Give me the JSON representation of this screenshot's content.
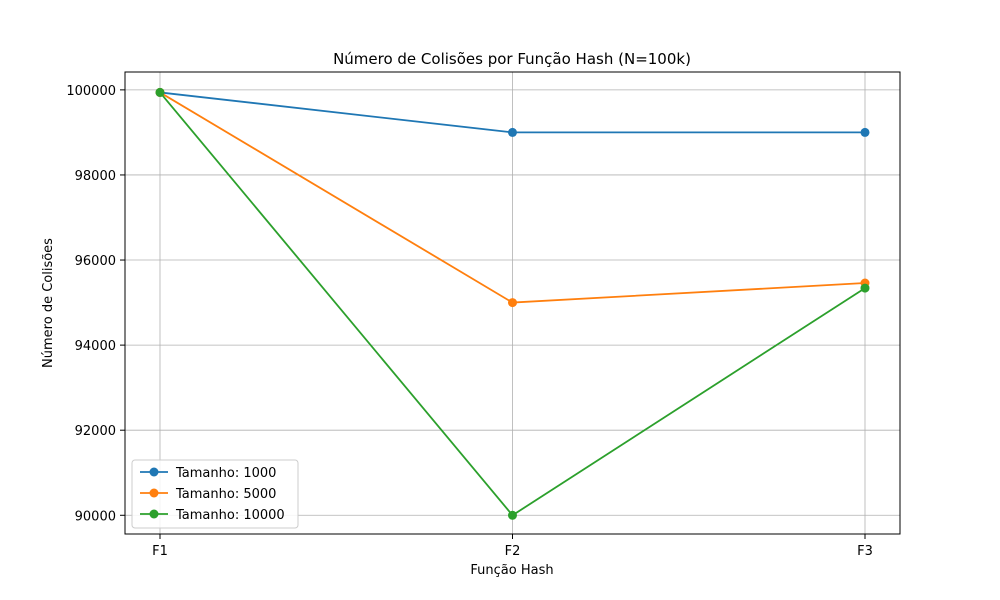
{
  "chart_data": {
    "type": "line",
    "title": "Número de Colisões por Função Hash (N=100k)",
    "xlabel": "Função Hash",
    "ylabel": "Número de Colisões",
    "categories": [
      "F1",
      "F2",
      "F3"
    ],
    "ylim": [
      89560,
      100420
    ],
    "yticks": [
      90000,
      92000,
      94000,
      96000,
      98000,
      100000
    ],
    "grid": true,
    "legend": "lower-left",
    "series": [
      {
        "name": "Tamanho: 1000",
        "color": "#1f77b4",
        "values": [
          99940,
          99000,
          99000
        ]
      },
      {
        "name": "Tamanho: 5000",
        "color": "#ff7f0e",
        "values": [
          99940,
          95000,
          95460
        ]
      },
      {
        "name": "Tamanho: 10000",
        "color": "#2ca02c",
        "values": [
          99940,
          90000,
          95340
        ]
      }
    ]
  }
}
